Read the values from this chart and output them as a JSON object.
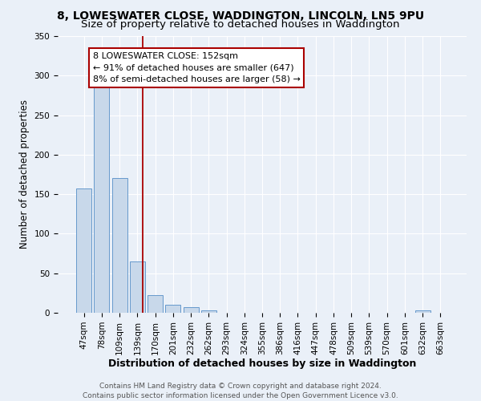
{
  "title_line1": "8, LOWESWATER CLOSE, WADDINGTON, LINCOLN, LN5 9PU",
  "title_line2": "Size of property relative to detached houses in Waddington",
  "xlabel": "Distribution of detached houses by size in Waddington",
  "ylabel": "Number of detached properties",
  "bar_labels": [
    "47sqm",
    "78sqm",
    "109sqm",
    "139sqm",
    "170sqm",
    "201sqm",
    "232sqm",
    "262sqm",
    "293sqm",
    "324sqm",
    "355sqm",
    "386sqm",
    "416sqm",
    "447sqm",
    "478sqm",
    "509sqm",
    "539sqm",
    "570sqm",
    "601sqm",
    "632sqm",
    "663sqm"
  ],
  "bar_heights": [
    157,
    288,
    170,
    65,
    22,
    10,
    7,
    3,
    0,
    0,
    0,
    0,
    0,
    0,
    0,
    0,
    0,
    0,
    0,
    3,
    0
  ],
  "bar_color": "#c8d8ea",
  "bar_edge_color": "#6699cc",
  "vline_x": 3.3,
  "vline_color": "#aa0000",
  "annotation_text": "8 LOWESWATER CLOSE: 152sqm\n← 91% of detached houses are smaller (647)\n8% of semi-detached houses are larger (58) →",
  "annotation_box_color": "white",
  "annotation_box_edge": "#aa0000",
  "ylim": [
    0,
    350
  ],
  "background_color": "#eaf0f8",
  "plot_bg_color": "#eaf0f8",
  "grid_color": "white",
  "footnote": "Contains HM Land Registry data © Crown copyright and database right 2024.\nContains public sector information licensed under the Open Government Licence v3.0.",
  "title_fontsize": 10,
  "subtitle_fontsize": 9.5,
  "xlabel_fontsize": 9,
  "ylabel_fontsize": 8.5,
  "tick_fontsize": 7.5,
  "annot_fontsize": 8,
  "footnote_fontsize": 6.5
}
